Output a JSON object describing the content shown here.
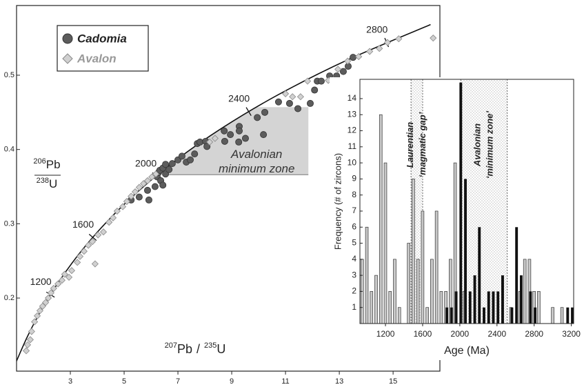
{
  "chart_data": [
    {
      "type": "scatter",
      "xlim": [
        1,
        16.74
      ],
      "ylim": [
        0.1016,
        0.5938
      ],
      "xticks": [
        3,
        5,
        7,
        9,
        11,
        13,
        15
      ],
      "yticks": [
        0.2,
        0.3,
        0.4,
        0.5
      ],
      "x_label": {
        "numerator_mass": "207",
        "numerator_element": "Pb",
        "separator": "/",
        "denominator_mass": "235",
        "denominator_element": "U"
      },
      "y_label": {
        "numerator_mass": "206",
        "numerator_element": "Pb",
        "denominator_mass": "238",
        "denominator_element": "U"
      },
      "legend": "upper left",
      "concordia": {
        "x": [
          0.9925,
          1.426,
          1.955,
          2.598,
          3.381,
          4.335,
          5.496,
          6.91,
          8.632,
          10.729,
          13.283,
          16.393
        ],
        "y": [
          0.1147,
          0.1498,
          0.1861,
          0.2234,
          0.262,
          0.3018,
          0.3428,
          0.3851,
          0.4287,
          0.4737,
          0.5202,
          0.5681
        ]
      },
      "concordia_ticks": [
        {
          "label": "1200",
          "x": 2.26,
          "y": 0.2046
        },
        {
          "label": "1600",
          "x": 3.834,
          "y": 0.2817
        },
        {
          "label": "2000",
          "x": 6.169,
          "y": 0.3638
        },
        {
          "label": "2400",
          "x": 9.63,
          "y": 0.4511
        },
        {
          "label": "2800",
          "x": 14.76,
          "y": 0.544
        }
      ],
      "zone": {
        "label": [
          "Avalonian",
          "minimum zone"
        ],
        "xlim": [
          6.67,
          11.85
        ],
        "ylim": [
          0.366,
          0.457
        ],
        "color": "#d4d4d4"
      },
      "series": [
        {
          "name": "Cadomia",
          "color": "#5c5c5c",
          "marker": "circle",
          "x": [
            5.26,
            5.56,
            5.87,
            5.92,
            6.15,
            6.23,
            6.28,
            6.33,
            6.36,
            6.44,
            6.44,
            6.54,
            6.54,
            6.67,
            6.79,
            7.0,
            7.15,
            7.31,
            7.46,
            7.62,
            7.72,
            7.82,
            8.03,
            8.08,
            8.72,
            8.74,
            8.95,
            9.26,
            9.28,
            9.28,
            9.51,
            9.95,
            10.18,
            10.23,
            10.74,
            11.15,
            11.46,
            11.92,
            12.08,
            12.18,
            12.33,
            12.64,
            12.79,
            12.9,
            13.15,
            13.33,
            13.51
          ],
          "y": [
            0.332,
            0.336,
            0.345,
            0.332,
            0.35,
            0.363,
            0.369,
            0.372,
            0.358,
            0.375,
            0.352,
            0.38,
            0.367,
            0.373,
            0.381,
            0.386,
            0.391,
            0.383,
            0.386,
            0.394,
            0.408,
            0.41,
            0.411,
            0.404,
            0.425,
            0.411,
            0.42,
            0.41,
            0.431,
            0.425,
            0.415,
            0.443,
            0.42,
            0.45,
            0.464,
            0.462,
            0.455,
            0.462,
            0.48,
            0.492,
            0.492,
            0.499,
            0.49,
            0.499,
            0.505,
            0.512,
            0.524
          ]
        },
        {
          "name": "Avalon",
          "color": "#d0d0d0",
          "marker": "diamond",
          "x": [
            1.36,
            1.41,
            1.51,
            1.56,
            1.67,
            1.77,
            1.87,
            1.97,
            2.08,
            2.18,
            2.28,
            2.38,
            2.54,
            2.69,
            2.79,
            2.95,
            3.05,
            3.26,
            3.36,
            3.51,
            3.67,
            3.82,
            3.92,
            4.03,
            4.23,
            4.44,
            4.59,
            4.74,
            4.95,
            5.1,
            5.26,
            5.41,
            5.56,
            5.72,
            5.87,
            6.03,
            6.18,
            8.18,
            8.38,
            11.0,
            11.26,
            11.56,
            11.82,
            12.59,
            12.95,
            13.31,
            13.72,
            14.13,
            14.49,
            14.79,
            15.21,
            16.49
          ],
          "y": [
            0.129,
            0.137,
            0.144,
            0.155,
            0.168,
            0.176,
            0.183,
            0.189,
            0.194,
            0.2,
            0.207,
            0.213,
            0.219,
            0.224,
            0.232,
            0.228,
            0.237,
            0.248,
            0.256,
            0.263,
            0.271,
            0.276,
            0.246,
            0.285,
            0.289,
            0.302,
            0.308,
            0.317,
            0.323,
            0.33,
            0.337,
            0.343,
            0.349,
            0.354,
            0.358,
            0.363,
            0.367,
            0.41,
            0.415,
            0.475,
            0.471,
            0.471,
            0.492,
            0.493,
            0.508,
            0.519,
            0.525,
            0.532,
            0.536,
            0.544,
            0.549,
            0.55
          ]
        }
      ]
    },
    {
      "type": "histogram",
      "x_label": "Age (Ma)",
      "y_label": "Frequency (# of zircons)",
      "xlim": [
        925,
        3225
      ],
      "ylim": [
        0,
        15.2
      ],
      "xticks": [
        1200,
        1600,
        2000,
        2400,
        2800,
        3200
      ],
      "yticks": [
        1,
        2,
        3,
        4,
        5,
        6,
        7,
        8,
        9,
        10,
        11,
        12,
        13,
        14
      ],
      "bins": [
        925,
        975,
        1025,
        1075,
        1125,
        1175,
        1225,
        1275,
        1325,
        1375,
        1425,
        1475,
        1525,
        1575,
        1625,
        1675,
        1725,
        1775,
        1825,
        1875,
        1925,
        1975,
        2025,
        2075,
        2125,
        2175,
        2225,
        2275,
        2325,
        2375,
        2425,
        2475,
        2525,
        2575,
        2625,
        2675,
        2725,
        2775,
        2825,
        2875,
        2925,
        2975,
        3025,
        3075,
        3125,
        3175,
        3225
      ],
      "series": [
        {
          "color": "#c8c8c8",
          "values": [
            4,
            6,
            2,
            3,
            13,
            10,
            2,
            4,
            1,
            0,
            5,
            9,
            4,
            7,
            1,
            4,
            7,
            2,
            2,
            4,
            10,
            0,
            2,
            0,
            0,
            0,
            0,
            0,
            0,
            0,
            0,
            0,
            1,
            0,
            2,
            4,
            4,
            2,
            2,
            0,
            0,
            1,
            0,
            1,
            0,
            0
          ]
        },
        {
          "color": "#111111",
          "values": [
            0,
            0,
            0,
            0,
            0,
            0,
            0,
            0,
            0,
            0,
            0,
            0,
            0,
            0,
            0,
            0,
            0,
            0,
            1,
            1,
            2,
            15,
            9,
            2,
            3,
            6,
            1,
            2,
            2,
            2,
            3,
            0,
            1,
            6,
            3,
            0,
            2,
            1,
            0,
            0,
            0,
            0,
            0,
            0,
            1,
            1
          ]
        }
      ],
      "zones": [
        {
          "label": [
            "Laurentian",
            "‘magmatic gap’"
          ],
          "range": [
            1475,
            1600
          ]
        },
        {
          "label": [
            "Avalonian",
            "‘minimum zone’"
          ],
          "range": [
            2010,
            2510
          ]
        }
      ]
    }
  ]
}
